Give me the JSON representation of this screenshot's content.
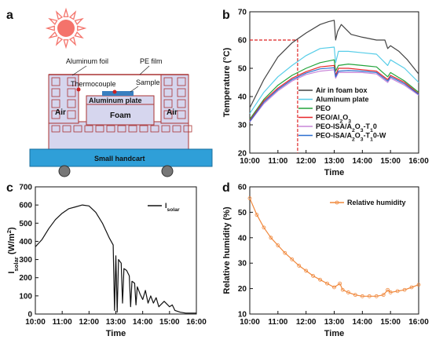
{
  "panels": {
    "a": "a",
    "b": "b",
    "c": "c",
    "d": "d"
  },
  "diagram": {
    "aluminum_foil": "Aluminum foil",
    "pe_film": "PE film",
    "thermocouple": "Thermocouple",
    "sample": "Sample",
    "aluminum_plate": "Aluminum plate",
    "foam": "Foam",
    "air_left": "Air",
    "air_right": "Air",
    "handcart": "Small handcart",
    "colors": {
      "sun": "#f4736b",
      "box_fill": "#d6d6ee",
      "cart": "#2f9fd8",
      "sample": "#3a7fc0",
      "box_stroke": "#a33"
    }
  },
  "chart_data": [
    {
      "panel": "b",
      "type": "line",
      "xlabel": "Time",
      "ylabel": "Temperature (°C)",
      "xlim": [
        10,
        16
      ],
      "ylim": [
        20,
        70
      ],
      "xticks": [
        "10:00",
        "11:00",
        "12:00",
        "13:00",
        "14:00",
        "15:00",
        "16:00"
      ],
      "yticks": [
        "20",
        "30",
        "40",
        "50",
        "60",
        "70"
      ],
      "legend_position": "bottom-right",
      "annotation": {
        "y": 60,
        "x": 11.7,
        "style": "dashed",
        "color": "#d22"
      },
      "series": [
        {
          "name": "Air in foam box",
          "color": "#444444",
          "points": [
            [
              10,
              36
            ],
            [
              10.5,
              46
            ],
            [
              11,
              54
            ],
            [
              11.5,
              59
            ],
            [
              12,
              62.5
            ],
            [
              12.5,
              65.5
            ],
            [
              12.8,
              66.5
            ],
            [
              13,
              67
            ],
            [
              13.05,
              60
            ],
            [
              13.12,
              63
            ],
            [
              13.25,
              65.5
            ],
            [
              13.4,
              64
            ],
            [
              13.6,
              62
            ],
            [
              14,
              61
            ],
            [
              14.5,
              60
            ],
            [
              14.8,
              60
            ],
            [
              14.9,
              57
            ],
            [
              15,
              58
            ],
            [
              15.3,
              56
            ],
            [
              15.6,
              53
            ],
            [
              16,
              48
            ]
          ]
        },
        {
          "name": "Aluminum plate",
          "color": "#57cde8",
          "points": [
            [
              10,
              34
            ],
            [
              10.5,
              41.5
            ],
            [
              11,
              47
            ],
            [
              11.5,
              51
            ],
            [
              12,
              54.5
            ],
            [
              12.5,
              57
            ],
            [
              13,
              57.5
            ],
            [
              13.05,
              52
            ],
            [
              13.15,
              56
            ],
            [
              13.5,
              56
            ],
            [
              14,
              55.5
            ],
            [
              14.5,
              55
            ],
            [
              14.9,
              51
            ],
            [
              15,
              53
            ],
            [
              15.5,
              50
            ],
            [
              16,
              45
            ]
          ]
        },
        {
          "name": "PEO",
          "color": "#22a33a",
          "points": [
            [
              10,
              32
            ],
            [
              10.5,
              39
            ],
            [
              11,
              44
            ],
            [
              11.5,
              47.5
            ],
            [
              12,
              50
            ],
            [
              12.5,
              52
            ],
            [
              13,
              53
            ],
            [
              13.05,
              49
            ],
            [
              13.15,
              51
            ],
            [
              13.5,
              51.5
            ],
            [
              14,
              51
            ],
            [
              14.5,
              50.5
            ],
            [
              14.9,
              47
            ],
            [
              15,
              48.5
            ],
            [
              15.5,
              45.5
            ],
            [
              16,
              41.5
            ]
          ]
        },
        {
          "name": "PEO/Al2O3",
          "color": "#e8262a",
          "points": [
            [
              10,
              31.5
            ],
            [
              10.5,
              38.5
            ],
            [
              11,
              43
            ],
            [
              11.5,
              46.5
            ],
            [
              12,
              48.8
            ],
            [
              12.5,
              50.5
            ],
            [
              13,
              51
            ],
            [
              13.05,
              47.5
            ],
            [
              13.15,
              50
            ],
            [
              13.5,
              50
            ],
            [
              14,
              49.5
            ],
            [
              14.5,
              49
            ],
            [
              14.9,
              46
            ],
            [
              15,
              47.5
            ],
            [
              15.5,
              45
            ],
            [
              16,
              41
            ]
          ]
        },
        {
          "name": "PEO-ISA/A2O3-T10",
          "color": "#c885d8",
          "points": [
            [
              10,
              31
            ],
            [
              10.5,
              37.5
            ],
            [
              11,
              42
            ],
            [
              11.5,
              45.5
            ],
            [
              12,
              47.8
            ],
            [
              12.5,
              49
            ],
            [
              13,
              49.5
            ],
            [
              13.05,
              46.5
            ],
            [
              13.15,
              48.5
            ],
            [
              13.5,
              48.5
            ],
            [
              14,
              48.5
            ],
            [
              14.5,
              48
            ],
            [
              14.9,
              45
            ],
            [
              15,
              46.5
            ],
            [
              15.5,
              44
            ],
            [
              16,
              40.5
            ]
          ]
        },
        {
          "name": "PEO-ISA/A2O3-T10-W",
          "color": "#2b6fd0",
          "points": [
            [
              10,
              31.2
            ],
            [
              10.5,
              38
            ],
            [
              11,
              42.5
            ],
            [
              11.5,
              46
            ],
            [
              12,
              48.3
            ],
            [
              12.5,
              49.8
            ],
            [
              13,
              50.2
            ],
            [
              13.05,
              47
            ],
            [
              13.15,
              49
            ],
            [
              13.5,
              49.2
            ],
            [
              14,
              49
            ],
            [
              14.5,
              48.5
            ],
            [
              14.9,
              45.5
            ],
            [
              15,
              47
            ],
            [
              15.5,
              44.5
            ],
            [
              16,
              40.8
            ]
          ]
        }
      ]
    },
    {
      "panel": "c",
      "type": "line",
      "xlabel": "Time",
      "ylabel": "I",
      "ylabel_sub": "solar",
      "ylabel_unit": "(W/m",
      "ylabel_unit_sup": "2",
      "ylabel_unit_close": ")",
      "xlim": [
        10,
        16
      ],
      "ylim": [
        0,
        700
      ],
      "xticks": [
        "10:00",
        "11:00",
        "12:00",
        "13:00",
        "14:00",
        "15:00",
        "16:00"
      ],
      "yticks": [
        "0",
        "100",
        "200",
        "300",
        "400",
        "500",
        "600",
        "700"
      ],
      "legend_position": "top-right",
      "series": [
        {
          "name": "I",
          "name_sub": "solar",
          "color": "#111111",
          "points": [
            [
              10,
              370
            ],
            [
              10.25,
              410
            ],
            [
              10.5,
              470
            ],
            [
              10.75,
              520
            ],
            [
              11,
              555
            ],
            [
              11.25,
              580
            ],
            [
              11.5,
              590
            ],
            [
              11.75,
              600
            ],
            [
              12,
              595
            ],
            [
              12.25,
              560
            ],
            [
              12.5,
              500
            ],
            [
              12.75,
              420
            ],
            [
              12.9,
              380
            ],
            [
              12.95,
              20
            ],
            [
              13.0,
              320
            ],
            [
              13.05,
              10
            ],
            [
              13.1,
              300
            ],
            [
              13.2,
              280
            ],
            [
              13.25,
              60
            ],
            [
              13.3,
              250
            ],
            [
              13.4,
              240
            ],
            [
              13.5,
              210
            ],
            [
              13.55,
              40
            ],
            [
              13.6,
              180
            ],
            [
              13.7,
              170
            ],
            [
              13.75,
              50
            ],
            [
              13.8,
              150
            ],
            [
              13.9,
              110
            ],
            [
              14,
              80
            ],
            [
              14.1,
              130
            ],
            [
              14.2,
              60
            ],
            [
              14.3,
              100
            ],
            [
              14.4,
              60
            ],
            [
              14.5,
              90
            ],
            [
              14.6,
              40
            ],
            [
              14.8,
              70
            ],
            [
              15,
              40
            ],
            [
              15.1,
              50
            ],
            [
              15.2,
              20
            ],
            [
              15.4,
              10
            ],
            [
              15.6,
              5
            ],
            [
              16,
              5
            ]
          ]
        }
      ]
    },
    {
      "panel": "d",
      "type": "line",
      "xlabel": "Time",
      "ylabel": "Relative humidity (%)",
      "xlim": [
        10,
        16
      ],
      "ylim": [
        10,
        60
      ],
      "xticks": [
        "10:00",
        "11:00",
        "12:00",
        "13:00",
        "14:00",
        "15:00",
        "16:00"
      ],
      "yticks": [
        "10",
        "20",
        "30",
        "40",
        "50",
        "60"
      ],
      "legend_position": "top-right",
      "series": [
        {
          "name": "Relative humidity",
          "color": "#f0883c",
          "marker": "circle-open",
          "points": [
            [
              10,
              55.5
            ],
            [
              10.25,
              49
            ],
            [
              10.5,
              44
            ],
            [
              10.75,
              40
            ],
            [
              11,
              37
            ],
            [
              11.25,
              34
            ],
            [
              11.5,
              31.5
            ],
            [
              11.75,
              29
            ],
            [
              12,
              27
            ],
            [
              12.25,
              25
            ],
            [
              12.5,
              23.5
            ],
            [
              12.75,
              22
            ],
            [
              13,
              20.5
            ],
            [
              13.2,
              22
            ],
            [
              13.3,
              19.5
            ],
            [
              13.5,
              18.5
            ],
            [
              13.75,
              17.5
            ],
            [
              14,
              17
            ],
            [
              14.25,
              17
            ],
            [
              14.5,
              17
            ],
            [
              14.75,
              17.5
            ],
            [
              14.9,
              19.5
            ],
            [
              15,
              18.5
            ],
            [
              15.25,
              19
            ],
            [
              15.5,
              19.5
            ],
            [
              15.75,
              20.5
            ],
            [
              16,
              21.5
            ]
          ]
        }
      ]
    }
  ]
}
